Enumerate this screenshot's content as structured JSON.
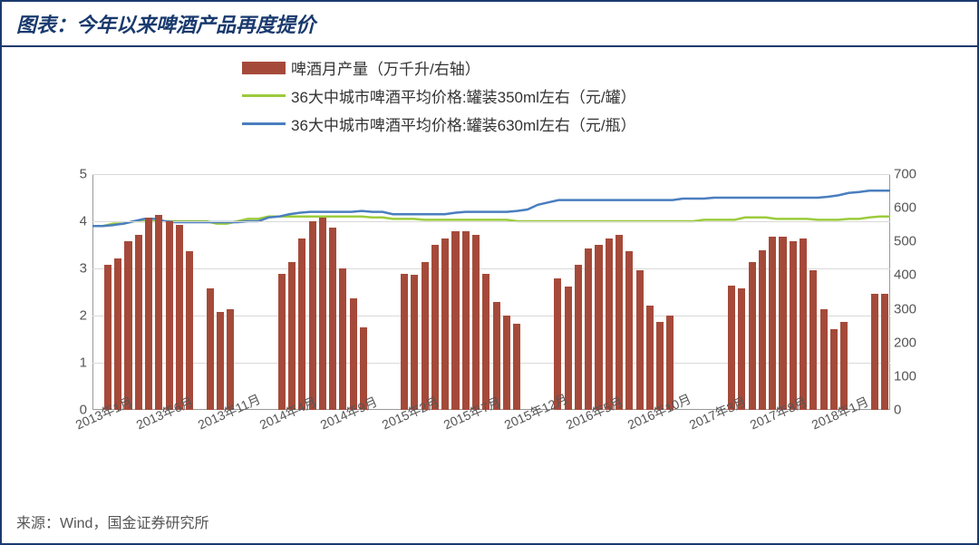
{
  "title": "图表：今年以来啤酒产品再度提价",
  "source": "来源：Wind，国金证券研究所",
  "legend": {
    "bar": "啤酒月产量（万千升/右轴）",
    "line_green": "36大中城市啤酒平均价格:罐装350ml左右（元/罐）",
    "line_blue": "36大中城市啤酒平均价格:罐装630ml左右（元/瓶）"
  },
  "colors": {
    "bar": "#a54a3a",
    "line_green": "#9ccb3c",
    "line_blue": "#4a7ebf",
    "grid": "#d9d9d9",
    "frame": "#1a3a6e"
  },
  "chart": {
    "y_left": {
      "min": 0,
      "max": 5,
      "ticks": [
        0,
        1,
        2,
        3,
        4,
        5
      ]
    },
    "y_right": {
      "min": 0,
      "max": 700,
      "ticks": [
        0,
        100,
        200,
        300,
        400,
        500,
        600,
        700
      ]
    },
    "x_labels": [
      "2013年1月",
      "2013年6月",
      "2013年11月",
      "2014年4月",
      "2014年9月",
      "2015年2月",
      "2015年7月",
      "2015年12月",
      "2016年5月",
      "2016年10月",
      "2017年3月",
      "2017年8月",
      "2018年1月"
    ],
    "bars": [
      null,
      430,
      450,
      500,
      520,
      570,
      580,
      560,
      550,
      470,
      null,
      360,
      290,
      300,
      null,
      null,
      null,
      null,
      405,
      440,
      510,
      560,
      570,
      540,
      420,
      330,
      245,
      null,
      null,
      null,
      405,
      400,
      440,
      490,
      510,
      530,
      530,
      520,
      405,
      320,
      280,
      255,
      null,
      null,
      null,
      390,
      365,
      430,
      480,
      490,
      510,
      520,
      470,
      415,
      310,
      260,
      280,
      null,
      null,
      null,
      null,
      null,
      370,
      360,
      440,
      475,
      515,
      515,
      500,
      510,
      415,
      300,
      240,
      260,
      null,
      null,
      345,
      345
    ],
    "line_green_vals": [
      3.9,
      3.9,
      3.95,
      3.95,
      4.0,
      4.0,
      4.0,
      4.0,
      4.0,
      4.0,
      4.0,
      4.0,
      3.95,
      3.95,
      4.0,
      4.05,
      4.05,
      4.1,
      4.1,
      4.1,
      4.1,
      4.1,
      4.1,
      4.1,
      4.1,
      4.1,
      4.1,
      4.08,
      4.08,
      4.05,
      4.05,
      4.05,
      4.03,
      4.03,
      4.03,
      4.03,
      4.03,
      4.03,
      4.03,
      4.03,
      4.03,
      4.0,
      4.0,
      4.0,
      4.0,
      4.0,
      4.0,
      4.0,
      4.0,
      4.0,
      4.0,
      4.0,
      4.0,
      4.0,
      4.0,
      4.0,
      4.0,
      4.0,
      4.0,
      4.03,
      4.03,
      4.03,
      4.03,
      4.08,
      4.08,
      4.08,
      4.05,
      4.05,
      4.05,
      4.05,
      4.03,
      4.03,
      4.03,
      4.05,
      4.05,
      4.08,
      4.1,
      4.1
    ],
    "line_blue_vals": [
      3.9,
      3.9,
      3.92,
      3.95,
      4.0,
      4.05,
      4.05,
      4.0,
      3.98,
      3.98,
      3.98,
      3.98,
      3.98,
      3.98,
      3.98,
      4.0,
      4.0,
      4.08,
      4.1,
      4.15,
      4.18,
      4.2,
      4.2,
      4.2,
      4.2,
      4.2,
      4.22,
      4.2,
      4.2,
      4.15,
      4.15,
      4.15,
      4.15,
      4.15,
      4.15,
      4.18,
      4.2,
      4.2,
      4.2,
      4.2,
      4.2,
      4.22,
      4.25,
      4.35,
      4.4,
      4.45,
      4.45,
      4.45,
      4.45,
      4.45,
      4.45,
      4.45,
      4.45,
      4.45,
      4.45,
      4.45,
      4.45,
      4.48,
      4.48,
      4.48,
      4.5,
      4.5,
      4.5,
      4.5,
      4.5,
      4.5,
      4.5,
      4.5,
      4.5,
      4.5,
      4.5,
      4.52,
      4.55,
      4.6,
      4.62,
      4.65,
      4.65,
      4.65
    ]
  }
}
